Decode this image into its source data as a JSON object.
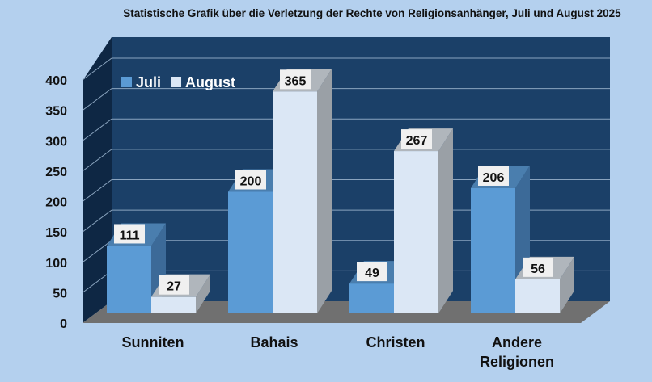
{
  "chart_data": {
    "type": "bar",
    "title": "Statistische Grafik über die Verletzung der Rechte von Religionsanhänger, Juli und August 2025",
    "categories": [
      [
        "Sunniten"
      ],
      [
        "Bahais"
      ],
      [
        "Christen"
      ],
      [
        "Andere",
        "Religionen"
      ]
    ],
    "series": [
      {
        "name": "Juli",
        "values": [
          111,
          200,
          49,
          206
        ]
      },
      {
        "name": "August",
        "values": [
          27,
          365,
          267,
          56
        ]
      }
    ],
    "ylim": [
      0,
      400
    ],
    "yticks": [
      0,
      50,
      100,
      150,
      200,
      250,
      300,
      350,
      400
    ],
    "grid": true,
    "legend": "top-left",
    "colors": {
      "page_background": "#b4d0ee",
      "back_wall": "#1b4068",
      "side_wall": "#0e2744",
      "floor": "#707070",
      "gridline": "#8aa4bf",
      "series": [
        {
          "front": "#5b9bd5",
          "top": "#4a7eae",
          "side": "#3c6a98"
        },
        {
          "front": "#dbe7f5",
          "top": "#b0b6bc",
          "side": "#9aa0a6"
        }
      ],
      "label_box": "#f0f0f0"
    }
  }
}
